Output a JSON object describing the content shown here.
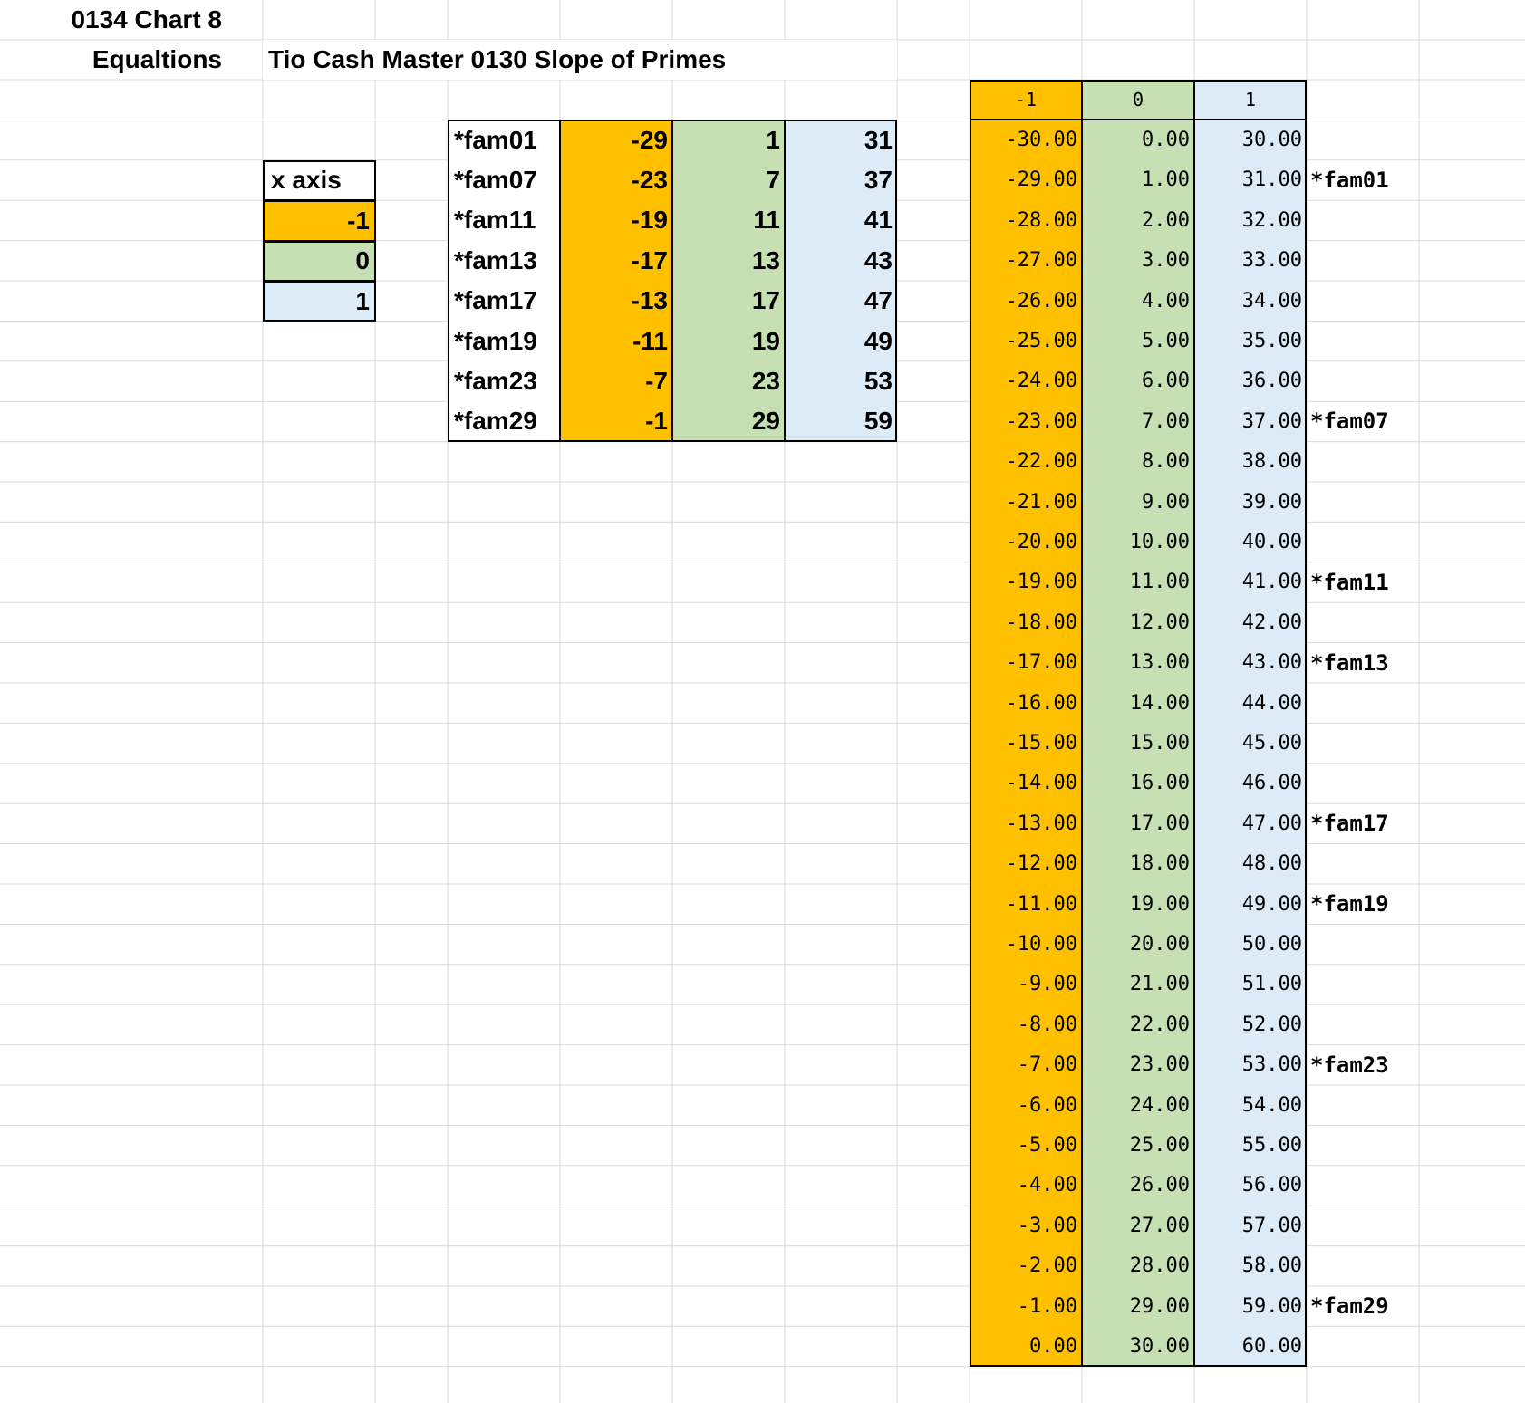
{
  "sheet": {
    "title": "0134 Chart 8",
    "subtitle": "Equaltions",
    "heading": "Tio Cash Master 0130 Slope of Primes"
  },
  "colors": {
    "orange": "#FFC000",
    "green": "#C6E0B4",
    "blue": "#DDEBF7",
    "gridline": "#D9D9D9",
    "border": "#000000"
  },
  "x_axis_table": {
    "header": "x axis",
    "values": [
      "-1",
      "0",
      "1"
    ]
  },
  "family_table": {
    "rows": [
      {
        "name": "*fam01",
        "neg": "-29",
        "zero": "1",
        "pos": "31"
      },
      {
        "name": "*fam07",
        "neg": "-23",
        "zero": "7",
        "pos": "37"
      },
      {
        "name": "*fam11",
        "neg": "-19",
        "zero": "11",
        "pos": "41"
      },
      {
        "name": "*fam13",
        "neg": "-17",
        "zero": "13",
        "pos": "43"
      },
      {
        "name": "*fam17",
        "neg": "-13",
        "zero": "17",
        "pos": "47"
      },
      {
        "name": "*fam19",
        "neg": "-11",
        "zero": "19",
        "pos": "49"
      },
      {
        "name": "*fam23",
        "neg": "-7",
        "zero": "23",
        "pos": "53"
      },
      {
        "name": "*fam29",
        "neg": "-1",
        "zero": "29",
        "pos": "59"
      }
    ]
  },
  "value_table": {
    "headers": [
      "-1",
      "0",
      "1"
    ],
    "rows": [
      {
        "neg": "-30.00",
        "zero": "0.00",
        "pos": "30.00",
        "label": ""
      },
      {
        "neg": "-29.00",
        "zero": "1.00",
        "pos": "31.00",
        "label": "*fam01"
      },
      {
        "neg": "-28.00",
        "zero": "2.00",
        "pos": "32.00",
        "label": ""
      },
      {
        "neg": "-27.00",
        "zero": "3.00",
        "pos": "33.00",
        "label": ""
      },
      {
        "neg": "-26.00",
        "zero": "4.00",
        "pos": "34.00",
        "label": ""
      },
      {
        "neg": "-25.00",
        "zero": "5.00",
        "pos": "35.00",
        "label": ""
      },
      {
        "neg": "-24.00",
        "zero": "6.00",
        "pos": "36.00",
        "label": ""
      },
      {
        "neg": "-23.00",
        "zero": "7.00",
        "pos": "37.00",
        "label": "*fam07"
      },
      {
        "neg": "-22.00",
        "zero": "8.00",
        "pos": "38.00",
        "label": ""
      },
      {
        "neg": "-21.00",
        "zero": "9.00",
        "pos": "39.00",
        "label": ""
      },
      {
        "neg": "-20.00",
        "zero": "10.00",
        "pos": "40.00",
        "label": ""
      },
      {
        "neg": "-19.00",
        "zero": "11.00",
        "pos": "41.00",
        "label": "*fam11"
      },
      {
        "neg": "-18.00",
        "zero": "12.00",
        "pos": "42.00",
        "label": ""
      },
      {
        "neg": "-17.00",
        "zero": "13.00",
        "pos": "43.00",
        "label": "*fam13"
      },
      {
        "neg": "-16.00",
        "zero": "14.00",
        "pos": "44.00",
        "label": ""
      },
      {
        "neg": "-15.00",
        "zero": "15.00",
        "pos": "45.00",
        "label": ""
      },
      {
        "neg": "-14.00",
        "zero": "16.00",
        "pos": "46.00",
        "label": ""
      },
      {
        "neg": "-13.00",
        "zero": "17.00",
        "pos": "47.00",
        "label": "*fam17"
      },
      {
        "neg": "-12.00",
        "zero": "18.00",
        "pos": "48.00",
        "label": ""
      },
      {
        "neg": "-11.00",
        "zero": "19.00",
        "pos": "49.00",
        "label": "*fam19"
      },
      {
        "neg": "-10.00",
        "zero": "20.00",
        "pos": "50.00",
        "label": ""
      },
      {
        "neg": "-9.00",
        "zero": "21.00",
        "pos": "51.00",
        "label": ""
      },
      {
        "neg": "-8.00",
        "zero": "22.00",
        "pos": "52.00",
        "label": ""
      },
      {
        "neg": "-7.00",
        "zero": "23.00",
        "pos": "53.00",
        "label": "*fam23"
      },
      {
        "neg": "-6.00",
        "zero": "24.00",
        "pos": "54.00",
        "label": ""
      },
      {
        "neg": "-5.00",
        "zero": "25.00",
        "pos": "55.00",
        "label": ""
      },
      {
        "neg": "-4.00",
        "zero": "26.00",
        "pos": "56.00",
        "label": ""
      },
      {
        "neg": "-3.00",
        "zero": "27.00",
        "pos": "57.00",
        "label": ""
      },
      {
        "neg": "-2.00",
        "zero": "28.00",
        "pos": "58.00",
        "label": ""
      },
      {
        "neg": "-1.00",
        "zero": "29.00",
        "pos": "59.00",
        "label": "*fam29"
      },
      {
        "neg": "0.00",
        "zero": "30.00",
        "pos": "60.00",
        "label": ""
      }
    ]
  }
}
